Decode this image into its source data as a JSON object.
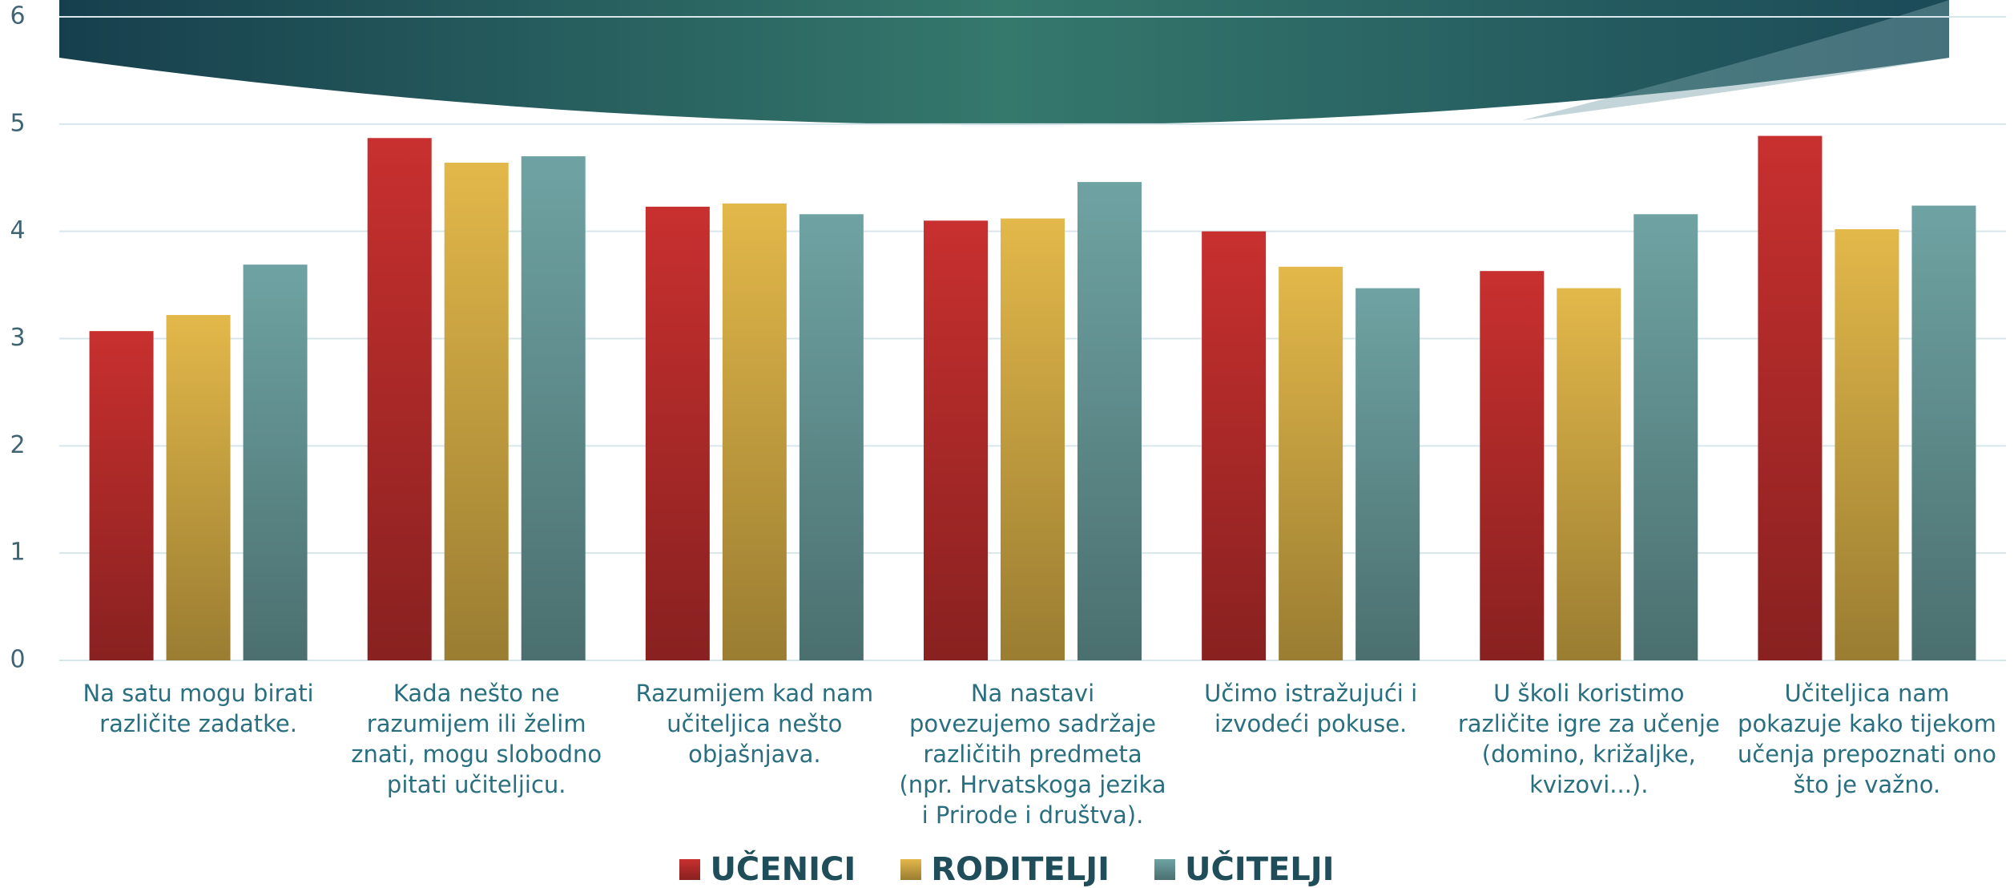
{
  "chart_data": {
    "type": "bar",
    "categories": [
      "Na satu mogu birati različite zadatke.",
      "Kada nešto ne razumijem ili želim znati, mogu slobodno pitati učiteljicu.",
      "Razumijem kad nam učiteljica nešto objašnjava.",
      "Na nastavi povezujemo sadržaje različitih predmeta (npr. Hrvatskoga jezika i Prirode i društva).",
      "Učimo istražujući i izvodeći pokuse.",
      "U školi koristimo različite igre za učenje (domino, križaljke, kvizovi...).",
      "Učiteljica nam pokazuje kako tijekom učenja prepoznati ono što je važno."
    ],
    "series": [
      {
        "name": "UČENICI",
        "color": "#c8302f",
        "values": [
          3.07,
          4.87,
          4.23,
          4.1,
          4.0,
          3.63,
          4.89
        ]
      },
      {
        "name": "RODITELJI",
        "color": "#e3b84a",
        "values": [
          3.22,
          4.64,
          4.26,
          4.12,
          3.67,
          3.47,
          4.02
        ]
      },
      {
        "name": "UČITELJI",
        "color": "#6fa3a3",
        "values": [
          3.69,
          4.7,
          4.16,
          4.46,
          3.47,
          4.16,
          4.24
        ]
      }
    ],
    "ylim": [
      0,
      6
    ],
    "yticks": [
      0,
      1,
      2,
      3,
      4,
      5,
      6
    ],
    "grid": true,
    "legend": "bottom"
  }
}
